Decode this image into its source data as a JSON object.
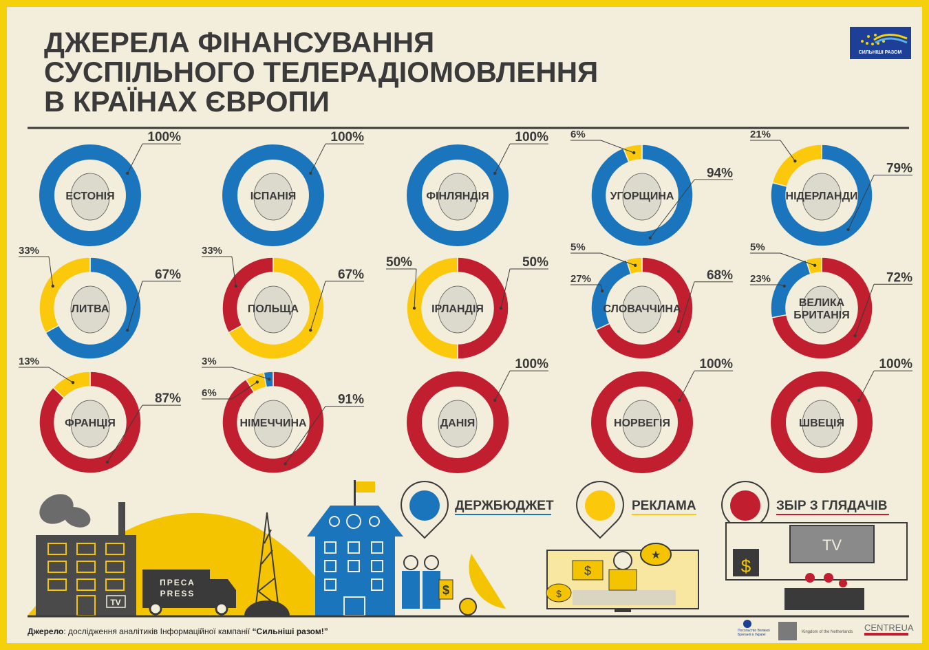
{
  "header": {
    "title_lines": [
      "ДЖЕРЕЛА ФІНАНСУВАННЯ",
      "СУСПІЛЬНОГО ТЕЛЕРАДІОМОВЛЕННЯ",
      "В КРАЇНАХ ЄВРОПИ"
    ],
    "logo_text": "СИЛЬНІШІ РАЗОМ"
  },
  "colors": {
    "budget": "#1b75bc",
    "advertising": "#fcc80b",
    "license_fee": "#c11f2f",
    "background": "#f2eedb",
    "frame": "#f5d10c",
    "text": "#3a3a3a"
  },
  "chart_data": {
    "type": "pie",
    "variant": "donut",
    "title": "ДЖЕРЕЛА ФІНАНСУВАННЯ СУСПІЛЬНОГО ТЕЛЕРАДІОМОВЛЕННЯ В КРАЇНАХ ЄВРОПИ",
    "legend": [
      {
        "key": "budget",
        "label": "ДЕРЖБЮДЖЕТ"
      },
      {
        "key": "advertising",
        "label": "РЕКЛАМА"
      },
      {
        "key": "license_fee",
        "label": "ЗБІР З ГЛЯДАЧІВ"
      }
    ],
    "charts": [
      {
        "country": [
          "ЕСТОНІЯ"
        ],
        "segments": [
          {
            "key": "budget",
            "value": 100,
            "label": "100%"
          }
        ]
      },
      {
        "country": [
          "ІСПАНІЯ"
        ],
        "segments": [
          {
            "key": "budget",
            "value": 100,
            "label": "100%"
          }
        ]
      },
      {
        "country": [
          "ФІНЛЯНДІЯ"
        ],
        "segments": [
          {
            "key": "budget",
            "value": 100,
            "label": "100%"
          }
        ]
      },
      {
        "country": [
          "УГОРЩИНА"
        ],
        "segments": [
          {
            "key": "budget",
            "value": 94,
            "label": "94%"
          },
          {
            "key": "advertising",
            "value": 6,
            "label": "6%"
          }
        ]
      },
      {
        "country": [
          "НІДЕРЛАНДИ"
        ],
        "segments": [
          {
            "key": "budget",
            "value": 79,
            "label": "79%"
          },
          {
            "key": "advertising",
            "value": 21,
            "label": "21%"
          }
        ]
      },
      {
        "country": [
          "ЛИТВА"
        ],
        "segments": [
          {
            "key": "budget",
            "value": 67,
            "label": "67%"
          },
          {
            "key": "advertising",
            "value": 33,
            "label": "33%"
          }
        ]
      },
      {
        "country": [
          "ПОЛЬЩА"
        ],
        "segments": [
          {
            "key": "advertising",
            "value": 67,
            "label": "67%"
          },
          {
            "key": "license_fee",
            "value": 33,
            "label": "33%"
          }
        ]
      },
      {
        "country": [
          "ІРЛАНДІЯ"
        ],
        "segments": [
          {
            "key": "license_fee",
            "value": 50,
            "label": "50%"
          },
          {
            "key": "advertising",
            "value": 50,
            "label": "50%"
          }
        ]
      },
      {
        "country": [
          "СЛОВАЧЧИНА"
        ],
        "segments": [
          {
            "key": "license_fee",
            "value": 68,
            "label": "68%"
          },
          {
            "key": "budget",
            "value": 27,
            "label": "27%"
          },
          {
            "key": "advertising",
            "value": 5,
            "label": "5%"
          }
        ]
      },
      {
        "country": [
          "ВЕЛИКА",
          "БРИТАНІЯ"
        ],
        "segments": [
          {
            "key": "license_fee",
            "value": 72,
            "label": "72%"
          },
          {
            "key": "budget",
            "value": 23,
            "label": "23%"
          },
          {
            "key": "advertising",
            "value": 5,
            "label": "5%"
          }
        ]
      },
      {
        "country": [
          "ФРАНЦІЯ"
        ],
        "segments": [
          {
            "key": "license_fee",
            "value": 87,
            "label": "87%"
          },
          {
            "key": "advertising",
            "value": 13,
            "label": "13%"
          }
        ]
      },
      {
        "country": [
          "НІМЕЧЧИНА"
        ],
        "segments": [
          {
            "key": "license_fee",
            "value": 91,
            "label": "91%"
          },
          {
            "key": "advertising",
            "value": 6,
            "label": "6%"
          },
          {
            "key": "budget",
            "value": 3,
            "label": "3%"
          }
        ]
      },
      {
        "country": [
          "ДАНІЯ"
        ],
        "segments": [
          {
            "key": "license_fee",
            "value": 100,
            "label": "100%"
          }
        ]
      },
      {
        "country": [
          "НОРВЕГІЯ"
        ],
        "segments": [
          {
            "key": "license_fee",
            "value": 100,
            "label": "100%"
          }
        ]
      },
      {
        "country": [
          "ШВЕЦІЯ"
        ],
        "segments": [
          {
            "key": "license_fee",
            "value": 100,
            "label": "100%"
          }
        ]
      }
    ]
  },
  "illustration": {
    "truck_label_1": "ПРЕСА",
    "truck_label_2": "PRESS",
    "building_sign": "TV",
    "tv_screen": "TV",
    "dollar": "$"
  },
  "footer": {
    "source_label": "Джерело",
    "source_text": ": дослідження аналітиків Інформаційної кампанії ",
    "source_campaign": "“Сильніші разом!”",
    "partner_1": "Посольство Великої Британії в Україні",
    "partner_2": "Kingdom of the Netherlands",
    "partner_3": "CENTREUA"
  }
}
